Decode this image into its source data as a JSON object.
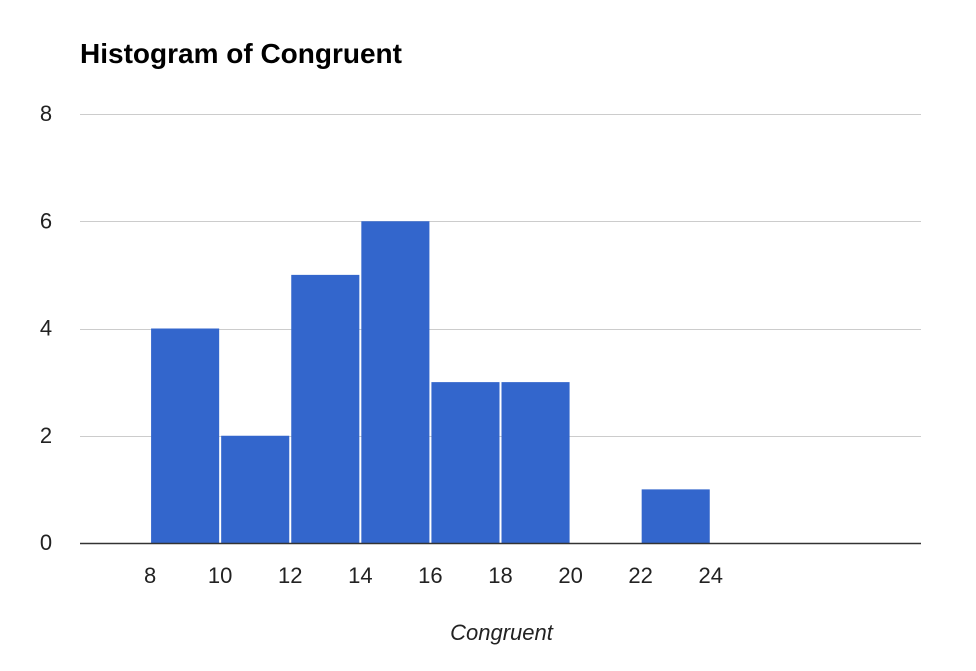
{
  "chart_data": {
    "type": "bar",
    "subtype": "histogram",
    "title": "Histogram of Congruent",
    "xlabel": "Congruent",
    "ylabel": "",
    "bins": [
      {
        "start": 8,
        "end": 10,
        "count": 4
      },
      {
        "start": 10,
        "end": 12,
        "count": 2
      },
      {
        "start": 12,
        "end": 14,
        "count": 5
      },
      {
        "start": 14,
        "end": 16,
        "count": 6
      },
      {
        "start": 16,
        "end": 18,
        "count": 3
      },
      {
        "start": 18,
        "end": 20,
        "count": 3
      },
      {
        "start": 20,
        "end": 22,
        "count": 0
      },
      {
        "start": 22,
        "end": 24,
        "count": 1
      }
    ],
    "xlim": [
      6,
      30
    ],
    "ylim": [
      0,
      8
    ],
    "x_ticks": [
      8,
      10,
      12,
      14,
      16,
      18,
      20,
      22,
      24
    ],
    "y_ticks": [
      0,
      2,
      4,
      6,
      8
    ],
    "grid": true,
    "legend": "none",
    "colors": {
      "bar": "#3366cc",
      "grid": "#cccccc",
      "axis": "#333333",
      "tick_text": "#222222",
      "title_text": "#000000"
    }
  }
}
